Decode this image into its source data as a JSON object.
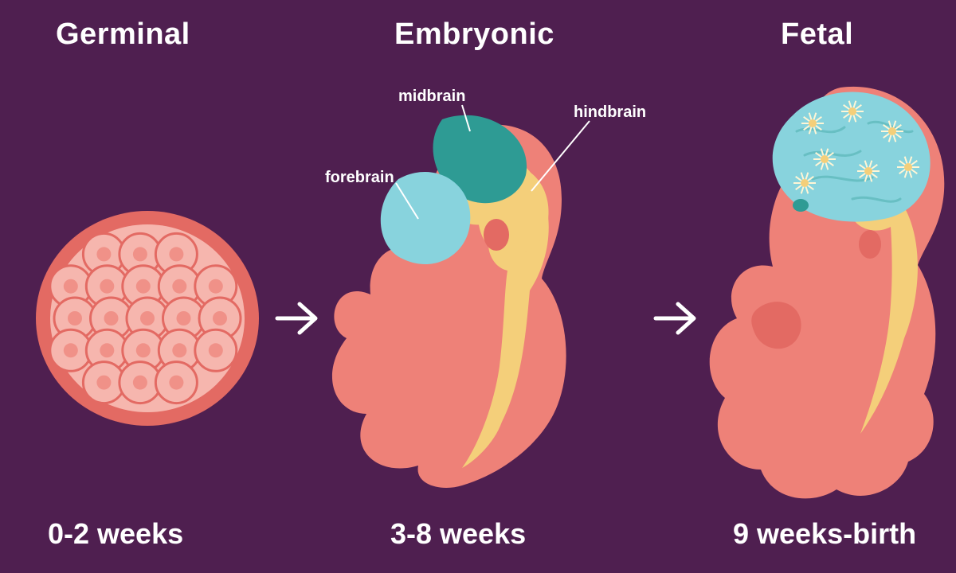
{
  "diagram": {
    "type": "infographic",
    "background_color": "#4f1f50",
    "text_color": "#ffffff",
    "title_fontsize": 38,
    "sub_fontsize": 36,
    "label_fontsize": 20,
    "arrow_stroke": "#ffffff",
    "arrow_width": 4
  },
  "palette": {
    "body": "#ee8178",
    "body_shade": "#e36a63",
    "cell_ring": "#e36a63",
    "cell_fill": "#f6b6ae",
    "cell_dot": "#ee8178",
    "spine": "#f4cf7a",
    "forebrain": "#88d3dd",
    "midbrain": "#2e9b94",
    "hindbrain": "#f4cf7a",
    "neuron": "#fff6d6",
    "line": "#ffffff"
  },
  "stages": {
    "germinal": {
      "title": "Germinal",
      "sub": "0-2 weeks"
    },
    "embryonic": {
      "title": "Embryonic",
      "sub": "3-8 weeks"
    },
    "fetal": {
      "title": "Fetal",
      "sub": "9 weeks-birth"
    }
  },
  "brain_labels": {
    "forebrain": "forebrain",
    "midbrain": "midbrain",
    "hindbrain": "hindbrain"
  }
}
